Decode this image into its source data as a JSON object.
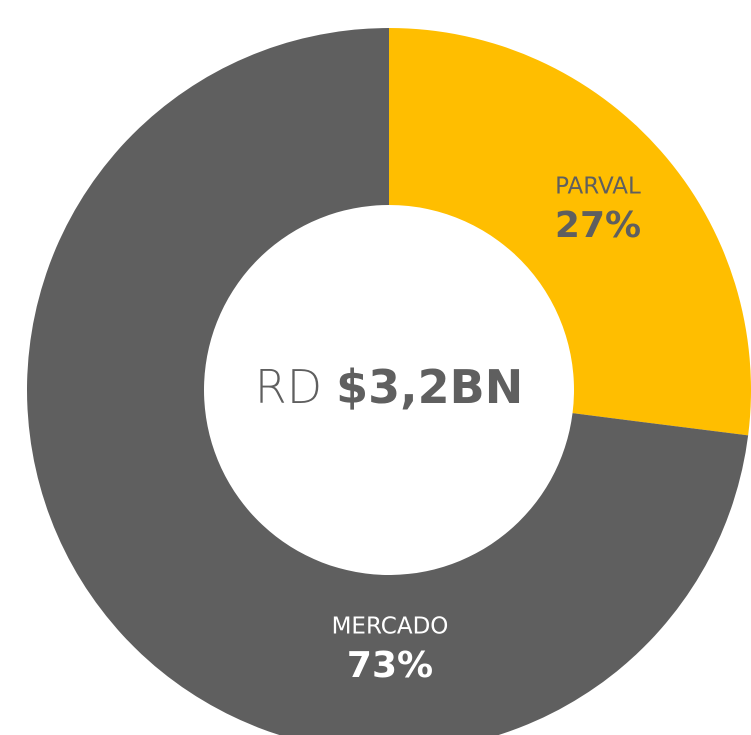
{
  "chart_data": {
    "type": "donut",
    "categories": [
      "PARVAL",
      "MERCADO"
    ],
    "values": [
      27,
      73
    ],
    "value_labels": [
      "27%",
      "73%"
    ],
    "colors": [
      "#ffbe00",
      "#5f5f5f"
    ],
    "label_colors": [
      "#5f5f5f",
      "#ffffff"
    ],
    "center_text": [
      "RD",
      "$3,2BN"
    ]
  }
}
